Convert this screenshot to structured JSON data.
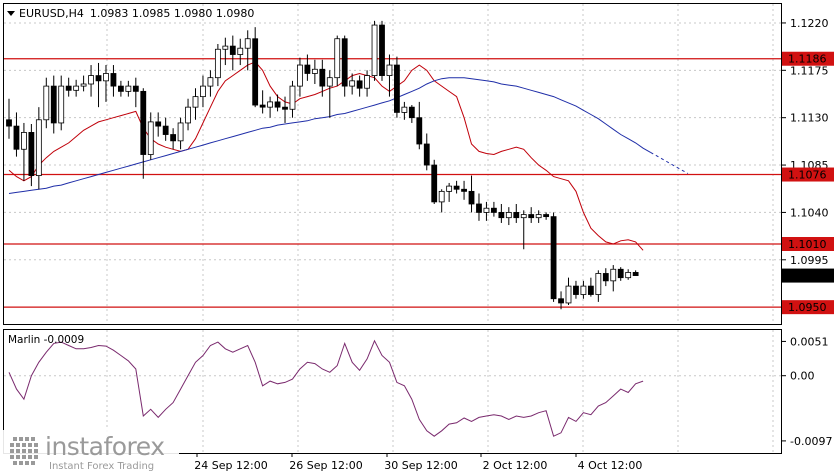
{
  "chart_data": [
    {
      "type": "candlestick",
      "symbol": "EURUSD,H4",
      "ohlc_header": "1.0983 1.0985 1.0980 1.0980",
      "ylim": [
        1.0934,
        1.1238
      ],
      "y_ticks": [
        "1.1220",
        "1.1175",
        "1.1130",
        "1.1085",
        "1.1040",
        "1.0995"
      ],
      "x_ticks": [
        "24 Sep 12:00",
        "26 Sep 12:00",
        "30 Sep 12:00",
        "2 Oct 12:00",
        "4 Oct 12:00"
      ],
      "current_price": "1.0980",
      "levels": [
        {
          "value": 1.1186,
          "label": "1.1186"
        },
        {
          "value": 1.1076,
          "label": "1.1076"
        },
        {
          "value": 1.101,
          "label": "1.1010"
        },
        {
          "value": 1.095,
          "label": "1.0950"
        }
      ],
      "candles": [
        [
          1.1128,
          1.1148,
          1.111,
          1.1122
        ],
        [
          1.1122,
          1.1135,
          1.1093,
          1.11
        ],
        [
          1.11,
          1.1125,
          1.107,
          1.1116
        ],
        [
          1.1116,
          1.1124,
          1.1065,
          1.1075
        ],
        [
          1.1075,
          1.114,
          1.1062,
          1.1128
        ],
        [
          1.1128,
          1.1168,
          1.112,
          1.116
        ],
        [
          1.116,
          1.117,
          1.1115,
          1.1125
        ],
        [
          1.1125,
          1.117,
          1.1118,
          1.116
        ],
        [
          1.116,
          1.1168,
          1.115,
          1.1156
        ],
        [
          1.1156,
          1.1166,
          1.115,
          1.116
        ],
        [
          1.116,
          1.117,
          1.1155,
          1.1162
        ],
        [
          1.1162,
          1.118,
          1.115,
          1.117
        ],
        [
          1.117,
          1.1182,
          1.114,
          1.1165
        ],
        [
          1.1165,
          1.118,
          1.1145,
          1.1172
        ],
        [
          1.1172,
          1.118,
          1.115,
          1.116
        ],
        [
          1.116,
          1.1165,
          1.115,
          1.1155
        ],
        [
          1.1155,
          1.1165,
          1.115,
          1.116
        ],
        [
          1.116,
          1.1168,
          1.114,
          1.1155
        ],
        [
          1.1155,
          1.1158,
          1.1072,
          1.1095
        ],
        [
          1.1095,
          1.1135,
          1.109,
          1.1126
        ],
        [
          1.1126,
          1.1135,
          1.1112,
          1.1122
        ],
        [
          1.1122,
          1.113,
          1.1108,
          1.1114
        ],
        [
          1.1114,
          1.112,
          1.11,
          1.1108
        ],
        [
          1.1108,
          1.113,
          1.11,
          1.1125
        ],
        [
          1.1125,
          1.1148,
          1.1118,
          1.114
        ],
        [
          1.114,
          1.1158,
          1.1128,
          1.115
        ],
        [
          1.115,
          1.117,
          1.114,
          1.116
        ],
        [
          1.116,
          1.1175,
          1.115,
          1.1168
        ],
        [
          1.1168,
          1.12,
          1.116,
          1.1195
        ],
        [
          1.1195,
          1.1206,
          1.118,
          1.1198
        ],
        [
          1.1198,
          1.1208,
          1.1175,
          1.119
        ],
        [
          1.119,
          1.1205,
          1.118,
          1.1196
        ],
        [
          1.1196,
          1.1213,
          1.1175,
          1.1205
        ],
        [
          1.1205,
          1.1216,
          1.114,
          1.1142
        ],
        [
          1.1142,
          1.1156,
          1.1134,
          1.114
        ],
        [
          1.114,
          1.115,
          1.113,
          1.1145
        ],
        [
          1.1145,
          1.1152,
          1.1136,
          1.114
        ],
        [
          1.114,
          1.115,
          1.1125,
          1.1138
        ],
        [
          1.1138,
          1.1165,
          1.113,
          1.116
        ],
        [
          1.116,
          1.1187,
          1.115,
          1.118
        ],
        [
          1.118,
          1.119,
          1.1165,
          1.1172
        ],
        [
          1.1172,
          1.1185,
          1.1162,
          1.1176
        ],
        [
          1.1176,
          1.1185,
          1.115,
          1.116
        ],
        [
          1.116,
          1.1175,
          1.113,
          1.1168
        ],
        [
          1.1168,
          1.1208,
          1.116,
          1.1205
        ],
        [
          1.1205,
          1.1208,
          1.115,
          1.116
        ],
        [
          1.116,
          1.1172,
          1.1152,
          1.1165
        ],
        [
          1.1165,
          1.117,
          1.115,
          1.1158
        ],
        [
          1.1158,
          1.1175,
          1.115,
          1.117
        ],
        [
          1.117,
          1.1222,
          1.1165,
          1.1218
        ],
        [
          1.1218,
          1.1222,
          1.1165,
          1.117
        ],
        [
          1.117,
          1.119,
          1.115,
          1.118
        ],
        [
          1.118,
          1.1188,
          1.113,
          1.1135
        ],
        [
          1.1135,
          1.1145,
          1.1128,
          1.114
        ],
        [
          1.114,
          1.1142,
          1.1125,
          1.113
        ],
        [
          1.113,
          1.1145,
          1.11,
          1.1105
        ],
        [
          1.1105,
          1.1115,
          1.108,
          1.1085
        ],
        [
          1.1085,
          1.109,
          1.1048,
          1.105
        ],
        [
          1.105,
          1.1062,
          1.104,
          1.106
        ],
        [
          1.106,
          1.1068,
          1.105,
          1.1065
        ],
        [
          1.1065,
          1.107,
          1.1058,
          1.1062
        ],
        [
          1.1062,
          1.107,
          1.1052,
          1.106
        ],
        [
          1.106,
          1.1075,
          1.104,
          1.1048
        ],
        [
          1.1048,
          1.1058,
          1.1032,
          1.104
        ],
        [
          1.104,
          1.105,
          1.1032,
          1.1044
        ],
        [
          1.1044,
          1.105,
          1.1036,
          1.104
        ],
        [
          1.104,
          1.1048,
          1.103,
          1.1035
        ],
        [
          1.1035,
          1.1045,
          1.1028,
          1.104
        ],
        [
          1.104,
          1.1048,
          1.103,
          1.1035
        ],
        [
          1.1035,
          1.1042,
          1.1005,
          1.1038
        ],
        [
          1.1038,
          1.1045,
          1.103,
          1.1035
        ],
        [
          1.1035,
          1.1042,
          1.103,
          1.1038
        ],
        [
          1.1038,
          1.104,
          1.1033,
          1.1036
        ],
        [
          1.1036,
          1.104,
          1.0955,
          1.0958
        ],
        [
          1.0958,
          1.0965,
          1.0948,
          1.0954
        ],
        [
          1.0954,
          1.0978,
          1.0952,
          1.097
        ],
        [
          1.097,
          1.0975,
          1.0958,
          1.0962
        ],
        [
          1.0962,
          1.0975,
          1.0958,
          1.097
        ],
        [
          1.097,
          1.0978,
          1.096,
          1.0962
        ],
        [
          1.0962,
          1.0985,
          1.0955,
          1.0982
        ],
        [
          1.0982,
          1.0987,
          1.097,
          1.0975
        ],
        [
          1.0975,
          1.099,
          1.0965,
          1.0986
        ],
        [
          1.0986,
          1.0988,
          1.0975,
          1.0978
        ],
        [
          1.0978,
          1.0986,
          1.0976,
          1.0983
        ],
        [
          1.0983,
          1.0985,
          1.098,
          1.098
        ]
      ],
      "series": [
        {
          "name": "",
          "color": "#c0000a",
          "style": "solid",
          "x_start": 0,
          "values": [
            1.108,
            1.1074,
            1.107,
            1.1074,
            1.1085,
            1.1092,
            1.1098,
            1.1102,
            1.1106,
            1.1112,
            1.1118,
            1.1122,
            1.1126,
            1.1128,
            1.113,
            1.1132,
            1.1134,
            1.1136,
            1.112,
            1.111,
            1.1105,
            1.1102,
            1.11,
            1.1098,
            1.11,
            1.111,
            1.1125,
            1.114,
            1.1155,
            1.1165,
            1.117,
            1.1175,
            1.118,
            1.1183,
            1.1175,
            1.116,
            1.115,
            1.1145,
            1.1143,
            1.1148,
            1.115,
            1.1152,
            1.1155,
            1.1158,
            1.116,
            1.1165,
            1.117,
            1.1172,
            1.117,
            1.1168,
            1.116,
            1.1155,
            1.116,
            1.1165,
            1.1175,
            1.118,
            1.1175,
            1.1165,
            1.116,
            1.1155,
            1.115,
            1.113,
            1.1105,
            1.1098,
            1.1096,
            1.1095,
            1.1098,
            1.11,
            1.1102,
            1.11,
            1.1092,
            1.1085,
            1.108,
            1.1074,
            1.1072,
            1.107,
            1.106,
            1.104,
            1.1025,
            1.1018,
            1.1012,
            1.101,
            1.1013,
            1.1014,
            1.1012,
            1.1004
          ]
        },
        {
          "name": "",
          "color": "#1f2ea8",
          "style": "solid",
          "x_start": 0,
          "values": [
            1.1058,
            1.1059,
            1.106,
            1.1061,
            1.1062,
            1.1063,
            1.1065,
            1.1066,
            1.1068,
            1.107,
            1.1072,
            1.1074,
            1.1076,
            1.1078,
            1.108,
            1.1082,
            1.1084,
            1.1086,
            1.1088,
            1.109,
            1.1092,
            1.1094,
            1.1096,
            1.1098,
            1.11,
            1.1102,
            1.1104,
            1.1106,
            1.1108,
            1.111,
            1.1112,
            1.1114,
            1.1116,
            1.1118,
            1.112,
            1.1121,
            1.1123,
            1.1124,
            1.1125,
            1.1126,
            1.1127,
            1.1129,
            1.113,
            1.1131,
            1.1133,
            1.1134,
            1.1136,
            1.1138,
            1.114,
            1.1142,
            1.1144,
            1.1146,
            1.1149,
            1.1152,
            1.1155,
            1.1158,
            1.1162,
            1.1165,
            1.1167,
            1.1168,
            1.1168,
            1.1168,
            1.1167,
            1.1166,
            1.1165,
            1.1164,
            1.1162,
            1.1161,
            1.116,
            1.1158,
            1.1156,
            1.1154,
            1.1152,
            1.115,
            1.1147,
            1.1144,
            1.1141,
            1.1137,
            1.1133,
            1.1129,
            1.1124,
            1.1119,
            1.1114,
            1.111,
            1.1106,
            1.1101,
            1.1097
          ]
        },
        {
          "name": "",
          "color": "#1f2ea8",
          "style": "dashed",
          "x_start": 86,
          "values": [
            1.1097,
            1.1093,
            1.1089,
            1.1085,
            1.1081,
            1.1077
          ]
        }
      ]
    },
    {
      "type": "line",
      "indicator_label": "Marlin -0.0009",
      "ylim": [
        -0.0115,
        0.0068
      ],
      "y_ticks": [
        "0.0051",
        "0.00",
        "-0.0097"
      ],
      "series": [
        {
          "name": "",
          "color": "#7a2a6e",
          "values": [
            0.0005,
            -0.002,
            -0.0035,
            0.0,
            0.002,
            0.0035,
            0.0048,
            0.005,
            0.0045,
            0.004,
            0.004,
            0.0042,
            0.0045,
            0.0044,
            0.0038,
            0.003,
            0.0022,
            0.001,
            -0.006,
            -0.005,
            -0.0062,
            -0.005,
            -0.004,
            -0.002,
            0.0,
            0.002,
            0.003,
            0.0045,
            0.005,
            0.004,
            0.0035,
            0.004,
            0.0045,
            0.002,
            -0.0015,
            -0.0008,
            -0.0012,
            -0.001,
            -0.0005,
            0.001,
            0.002,
            0.0018,
            0.001,
            0.0005,
            0.0015,
            0.0048,
            0.002,
            0.0008,
            0.0025,
            0.0052,
            0.003,
            0.002,
            -0.001,
            -0.0015,
            -0.0035,
            -0.0065,
            -0.0082,
            -0.009,
            -0.0082,
            -0.0072,
            -0.007,
            -0.0063,
            -0.0068,
            -0.0062,
            -0.006,
            -0.0058,
            -0.006,
            -0.0065,
            -0.006,
            -0.0062,
            -0.006,
            -0.0055,
            -0.0052,
            -0.009,
            -0.0085,
            -0.0062,
            -0.0068,
            -0.0055,
            -0.0058,
            -0.0045,
            -0.004,
            -0.003,
            -0.002,
            -0.0025,
            -0.0012,
            -0.0008
          ]
        }
      ]
    }
  ],
  "logo": {
    "brand": "instaforex",
    "tagline": "Instant Forex Trading"
  },
  "colors": {
    "bull_fill": "#ffffff",
    "bear_fill": "#000000",
    "level": "#d11111",
    "grid": "#c8c8c8",
    "axis_text": "#000000"
  }
}
